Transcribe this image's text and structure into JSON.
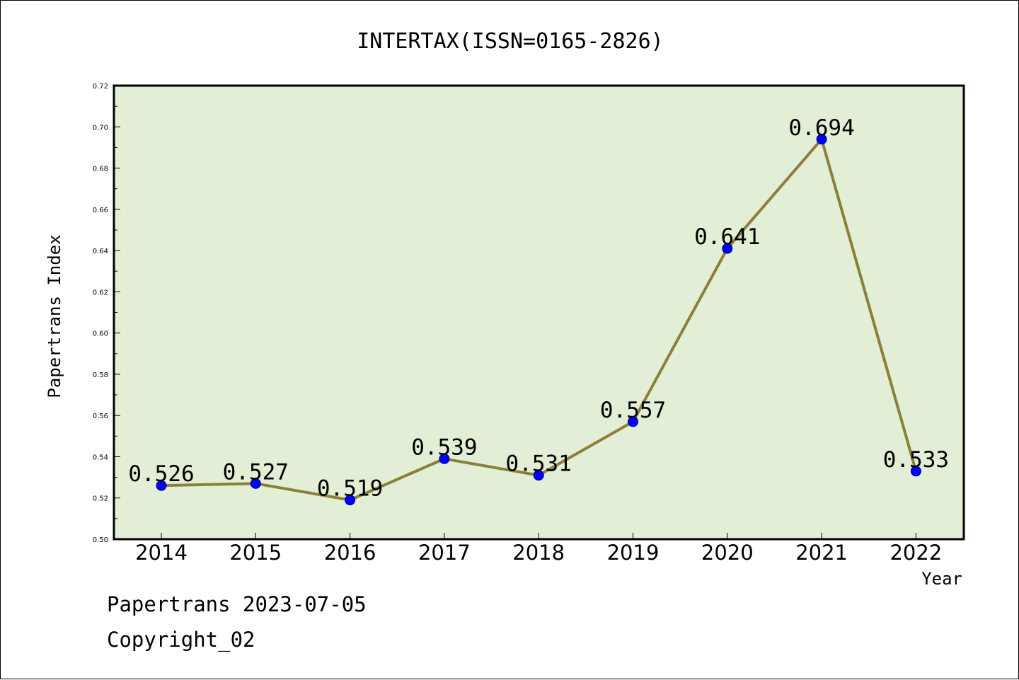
{
  "chart_data": {
    "type": "line",
    "title": "INTERTAX(ISSN=0165-2826)",
    "xlabel": "Year",
    "ylabel": "Papertrans Index",
    "categories": [
      "2014",
      "2015",
      "2016",
      "2017",
      "2018",
      "2019",
      "2020",
      "2021",
      "2022"
    ],
    "series": [
      {
        "values": [
          0.526,
          0.527,
          0.519,
          0.539,
          0.531,
          0.557,
          0.641,
          0.694,
          0.533
        ],
        "data_labels": [
          "0.526",
          "0.527",
          "0.519",
          "0.539",
          "0.531",
          "0.557",
          "0.641",
          "0.694",
          "0.533"
        ]
      }
    ],
    "ylim": [
      0.5,
      0.72
    ],
    "yticks": [
      "0.50",
      "0.52",
      "0.54",
      "0.56",
      "0.58",
      "0.60",
      "0.62",
      "0.64",
      "0.66",
      "0.68",
      "0.70",
      "0.72"
    ],
    "grid": false,
    "legend": "none",
    "colors": {
      "plot_background": "#e2efd6",
      "line": "#8b7f3a",
      "marker": "#0000ff",
      "marker_edge": "#000080"
    }
  },
  "footer": {
    "stamp": "Papertrans 2023-07-05",
    "copyright": "Copyright_02"
  }
}
